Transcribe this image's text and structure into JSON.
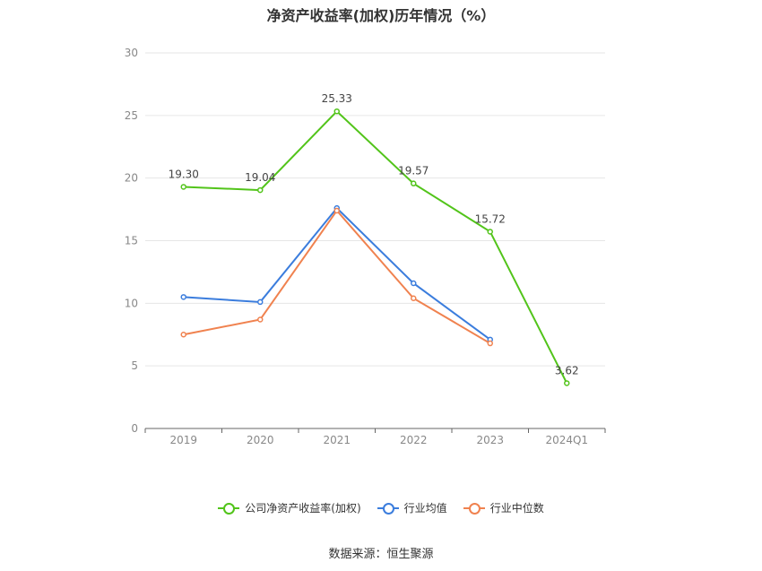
{
  "chart_data": {
    "type": "line",
    "title": "净资产收益率(加权)历年情况（%）",
    "categories": [
      "2019",
      "2020",
      "2021",
      "2022",
      "2023",
      "2024Q1"
    ],
    "ylim": [
      0,
      30
    ],
    "yticks": [
      0,
      5,
      10,
      15,
      20,
      25,
      30
    ],
    "grid": true,
    "legend_position": "bottom",
    "series": [
      {
        "name": "公司净资产收益率(加权)",
        "color": "#52c41a",
        "values": [
          19.3,
          19.04,
          25.33,
          19.57,
          15.72,
          3.62
        ],
        "labels": [
          "19.30",
          "19.04",
          "25.33",
          "19.57",
          "15.72",
          "3.62"
        ]
      },
      {
        "name": "行业均值",
        "color": "#3b7ddd",
        "values": [
          10.5,
          10.1,
          17.6,
          11.6,
          7.1,
          null
        ]
      },
      {
        "name": "行业中位数",
        "color": "#f0824f",
        "values": [
          7.5,
          8.7,
          17.4,
          10.4,
          6.8,
          null
        ]
      }
    ]
  },
  "source": "数据来源：恒生聚源"
}
